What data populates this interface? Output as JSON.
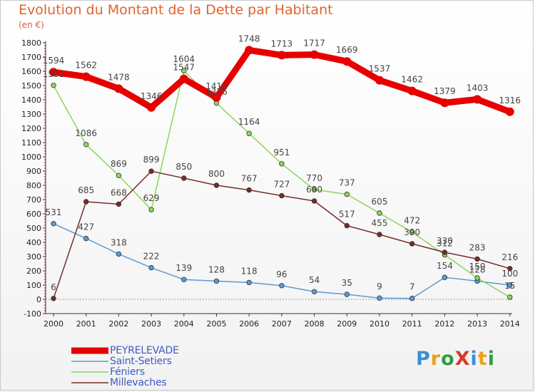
{
  "header": {
    "title": "Evolution du Montant de la Dette par Habitant",
    "unit": "(en €)"
  },
  "brand": {
    "text": "ProXiti",
    "colors": [
      "#3a8fd6",
      "#e8a21c",
      "#2c9e45",
      "#d93b2b",
      "#3a8fd6",
      "#e8a21c",
      "#2c9e45"
    ]
  },
  "chart_data": {
    "type": "line",
    "x": [
      2000,
      2001,
      2002,
      2003,
      2004,
      2005,
      2006,
      2007,
      2008,
      2009,
      2010,
      2011,
      2012,
      2013,
      2014
    ],
    "ylim": [
      -100,
      1800
    ],
    "yticks": [
      -100,
      0,
      100,
      200,
      300,
      400,
      500,
      600,
      700,
      800,
      900,
      1000,
      1100,
      1200,
      1300,
      1400,
      1500,
      1600,
      1700,
      1800
    ],
    "grid": false,
    "legend_position": "bottom-left",
    "series": [
      {
        "name": "PEYRELEVADE",
        "color": "#e60000",
        "emphasis": "thick",
        "values": [
          1594,
          1562,
          1478,
          1346,
          1547,
          1416,
          1748,
          1713,
          1717,
          1669,
          1537,
          1462,
          1379,
          1403,
          1316
        ],
        "labels": [
          "1594",
          "1562",
          "1478",
          "1346",
          "1547",
          "1416",
          "1748",
          "1713",
          "1717",
          "1669",
          "1537",
          "1462",
          "1379",
          "1403",
          "1316"
        ]
      },
      {
        "name": "Saint-Setiers",
        "color": "#5b9bd5",
        "values": [
          531,
          427,
          318,
          222,
          139,
          128,
          118,
          96,
          54,
          35,
          9,
          7,
          154,
          128,
          100
        ],
        "labels": [
          "531",
          "427",
          "318",
          "222",
          "139",
          "128",
          "118",
          "96",
          "54",
          "35",
          "9",
          "7",
          "154",
          "128",
          "100"
        ]
      },
      {
        "name": "Féniers",
        "color": "#8dd65a",
        "values": [
          1501,
          1086,
          869,
          629,
          1604,
          1376,
          1164,
          951,
          770,
          737,
          605,
          472,
          312,
          150,
          15
        ],
        "labels": [
          "1501",
          "1086",
          "869",
          "629",
          "1604",
          "1376",
          "1164",
          "951",
          "770",
          "737",
          "605",
          "472",
          "312",
          "150",
          "15"
        ]
      },
      {
        "name": "Millevaches",
        "color": "#7a2a2a",
        "values": [
          6,
          685,
          668,
          899,
          850,
          800,
          767,
          727,
          690,
          517,
          455,
          390,
          330,
          283,
          216
        ],
        "labels": [
          "6",
          "685",
          "668",
          "899",
          "850",
          "800",
          "767",
          "727",
          "690",
          "517",
          "455",
          "390",
          "330",
          "283",
          "216"
        ]
      }
    ]
  }
}
